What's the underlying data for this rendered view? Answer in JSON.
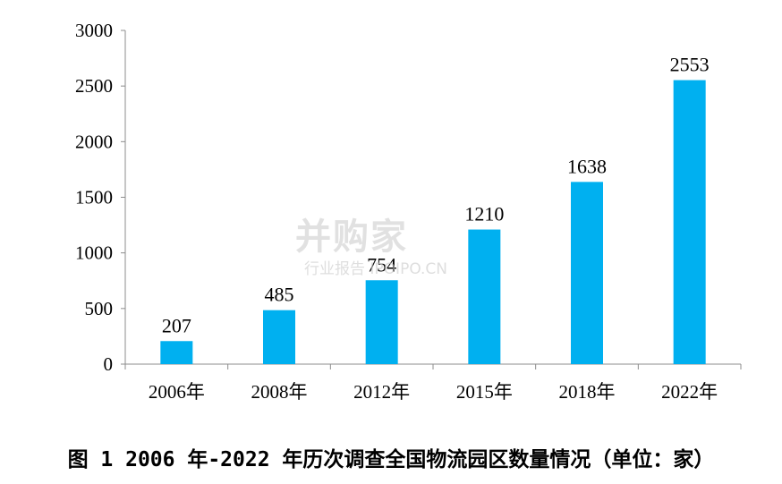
{
  "chart_data": {
    "type": "bar",
    "categories": [
      "2006年",
      "2008年",
      "2012年",
      "2015年",
      "2018年",
      "2022年"
    ],
    "values": [
      207,
      485,
      754,
      1210,
      1638,
      2553
    ],
    "data_labels": [
      "207",
      "485",
      "754",
      "1210",
      "1638",
      "2553"
    ],
    "y_ticks": [
      0,
      500,
      1000,
      1500,
      2000,
      2500,
      3000
    ],
    "ylim": [
      0,
      3000
    ],
    "bar_color": "#00B0F0",
    "grid": false,
    "legend": "none"
  },
  "caption": "图 1 2006 年-2022 年历次调查全国物流园区数量情况（单位：家）",
  "watermark": {
    "main": "并购家",
    "sub": "行业报告 IPOIPO.CN"
  }
}
